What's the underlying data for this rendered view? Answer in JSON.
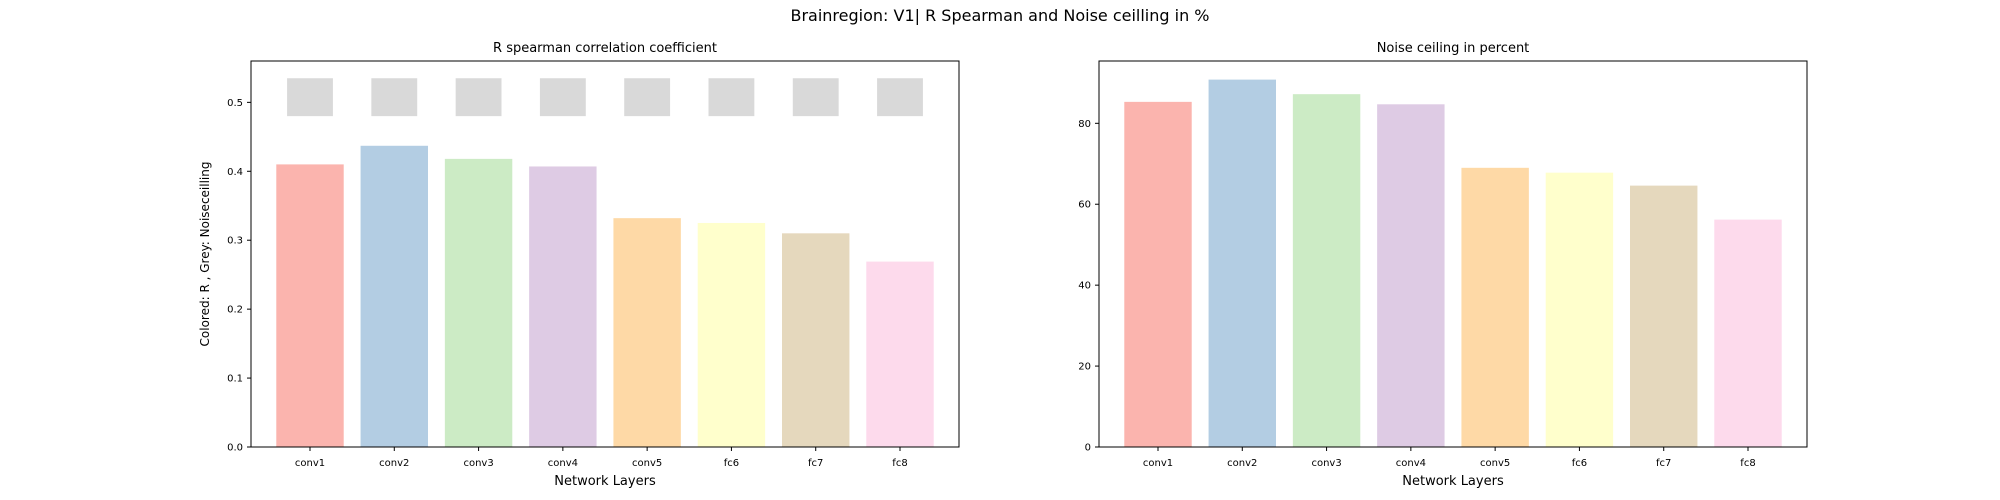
{
  "figure": {
    "suptitle": "Brainregion: V1| R Spearman and Noise ceilling in %"
  },
  "chart_data": [
    {
      "type": "bar",
      "title": "R spearman correlation coefficient",
      "xlabel": "Network Layers",
      "ylabel": "Colored: R , Grey: Noiseceilling",
      "categories": [
        "conv1",
        "conv2",
        "conv3",
        "conv4",
        "conv5",
        "fc6",
        "fc7",
        "fc8"
      ],
      "series": [
        {
          "values": [
            0.41,
            0.437,
            0.418,
            0.407,
            0.332,
            0.325,
            0.31,
            0.269
          ]
        }
      ],
      "noise_ceiling": {
        "lower": 0.48,
        "upper": 0.535,
        "color": "#d9d9d9"
      },
      "colors": [
        "#fbb4ae",
        "#b3cde3",
        "#ccebc5",
        "#decbe4",
        "#fed9a6",
        "#ffffcc",
        "#e5d8bd",
        "#fddaec"
      ],
      "ylim": [
        0,
        0.56
      ],
      "yticks": [
        "0.0",
        "0.1",
        "0.2",
        "0.3",
        "0.4",
        "0.5"
      ],
      "grid": false
    },
    {
      "type": "bar",
      "title": "Noise ceiling in percent",
      "xlabel": "Network Layers",
      "ylabel": "",
      "categories": [
        "conv1",
        "conv2",
        "conv3",
        "conv4",
        "conv5",
        "fc6",
        "fc7",
        "fc8"
      ],
      "series": [
        {
          "values": [
            85.3,
            90.8,
            87.2,
            84.7,
            69.0,
            67.8,
            64.6,
            56.2
          ]
        }
      ],
      "colors": [
        "#fbb4ae",
        "#b3cde3",
        "#ccebc5",
        "#decbe4",
        "#fed9a6",
        "#ffffcc",
        "#e5d8bd",
        "#fddaec"
      ],
      "ylim": [
        0,
        95.4
      ],
      "yticks": [
        "0",
        "20",
        "40",
        "60",
        "80"
      ],
      "grid": false
    }
  ]
}
